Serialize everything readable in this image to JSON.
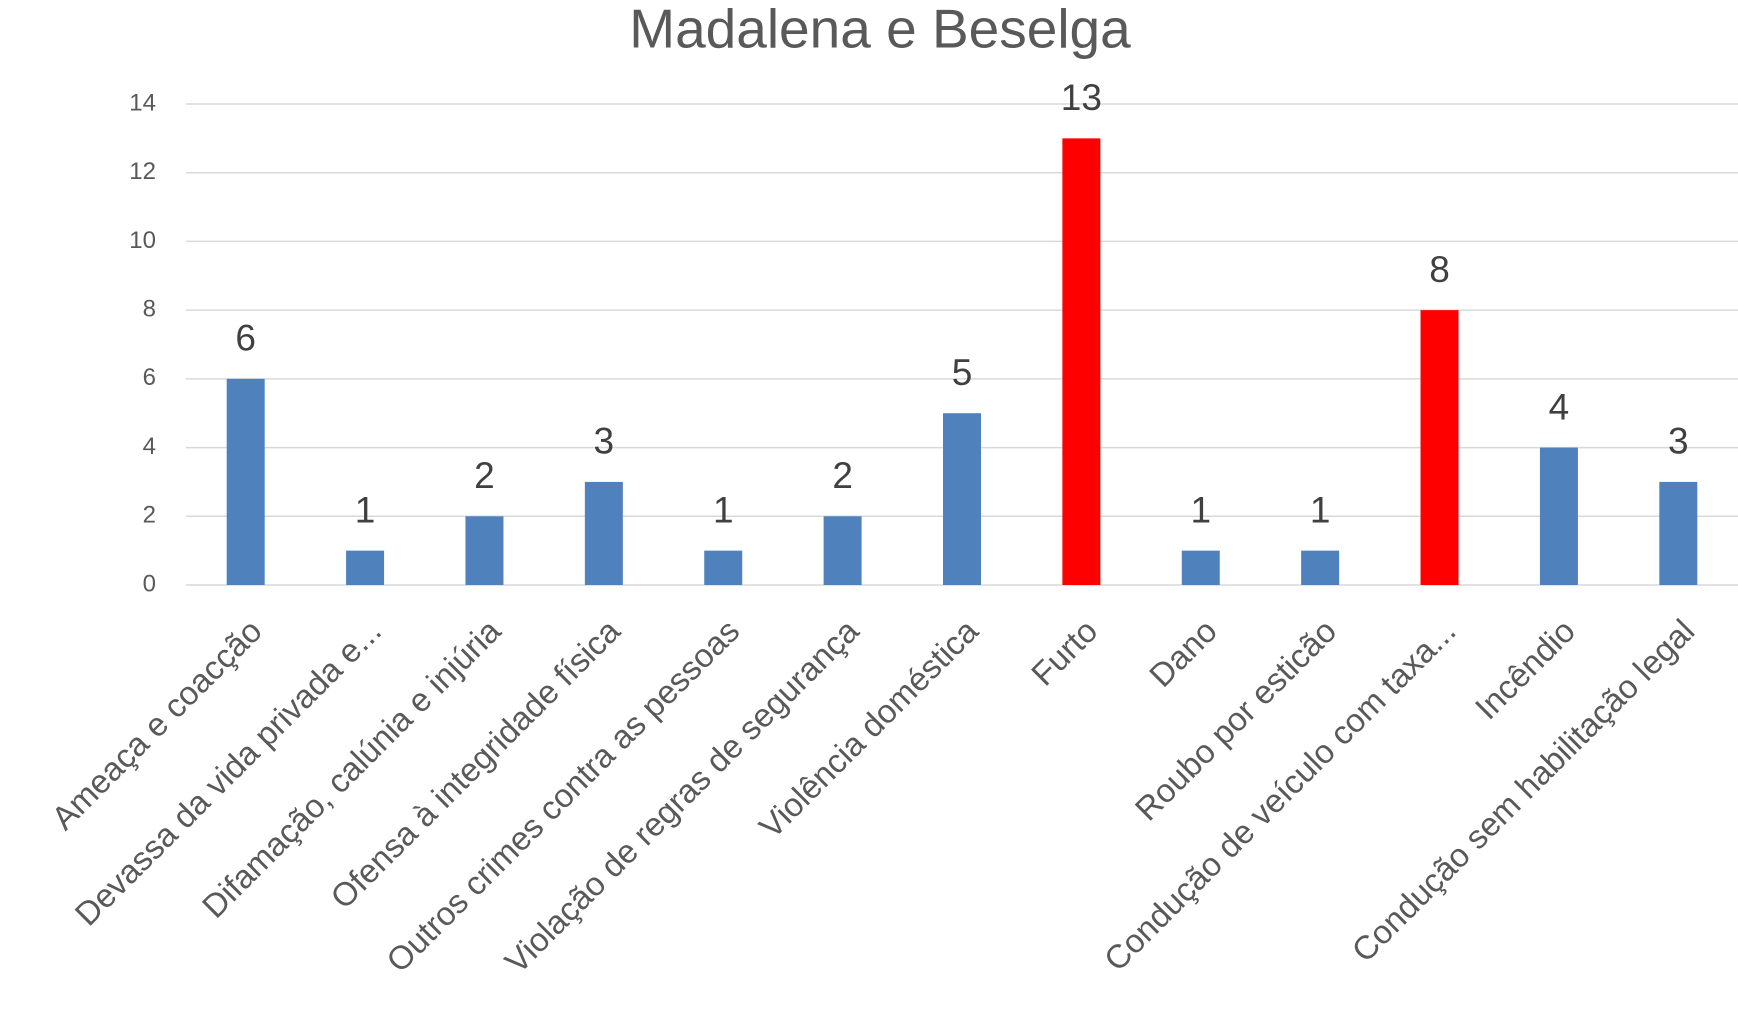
{
  "chart_data": {
    "type": "bar",
    "title": "Madalena e Beselga",
    "categories": [
      "Ameaça e coacção",
      "Devassa da vida privada e...",
      "Difamação, calúnia e injúria",
      "Ofensa à integridade física",
      "Outros crimes contra as pessoas",
      "Violação de regras de segurança",
      "Violência doméstica",
      "Furto",
      "Dano",
      "Roubo por esticão",
      "Condução de veículo com taxa...",
      "Incêndio",
      "Condução sem habilitação legal"
    ],
    "values": [
      6,
      1,
      2,
      3,
      1,
      2,
      5,
      13,
      1,
      1,
      8,
      4,
      3
    ],
    "colors": [
      "#4f81bd",
      "#4f81bd",
      "#4f81bd",
      "#4f81bd",
      "#4f81bd",
      "#4f81bd",
      "#4f81bd",
      "#ff0000",
      "#4f81bd",
      "#4f81bd",
      "#ff0000",
      "#4f81bd",
      "#4f81bd"
    ],
    "ylim": [
      0,
      14
    ],
    "yticks": [
      0,
      2,
      4,
      6,
      8,
      10,
      12,
      14
    ],
    "grid": true
  }
}
